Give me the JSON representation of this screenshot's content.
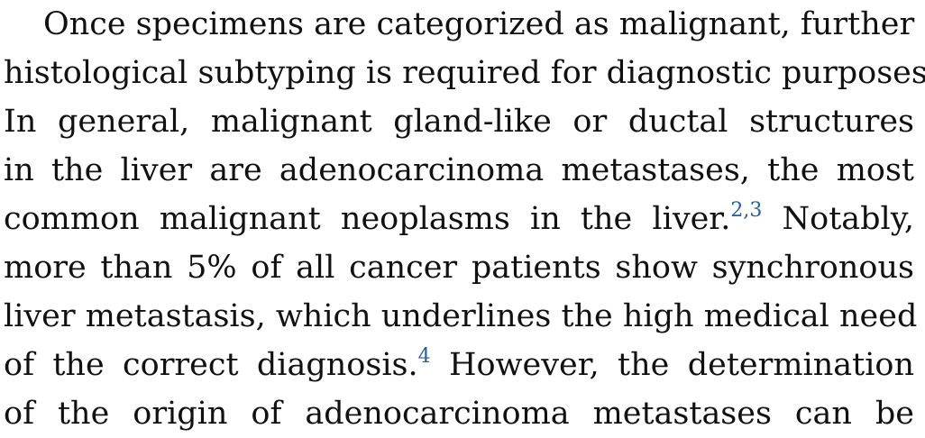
{
  "paragraph": {
    "lines": [
      {
        "text": "Once specimens are categorized as malignant, further"
      },
      {
        "text": "histological subtyping is required for diagnostic purposes."
      },
      {
        "text": "In general, malignant gland-like or ductal structures"
      },
      {
        "text": "in the liver are adenocarcinoma metastases, the most"
      },
      {
        "before": "common malignant neoplasms in the liver.",
        "cite": "2,3",
        "after": " Notably,"
      },
      {
        "text": "more than 5% of all cancer patients show synchronous"
      },
      {
        "text": "liver metastasis, which underlines the high medical need"
      },
      {
        "before": "of the correct diagnosis.",
        "cite": "4",
        "after": " However, the determination"
      },
      {
        "text": "of the origin of adenocarcinoma metastases can be"
      }
    ]
  },
  "colors": {
    "text": "#111111",
    "citation": "#1f5fa8"
  }
}
